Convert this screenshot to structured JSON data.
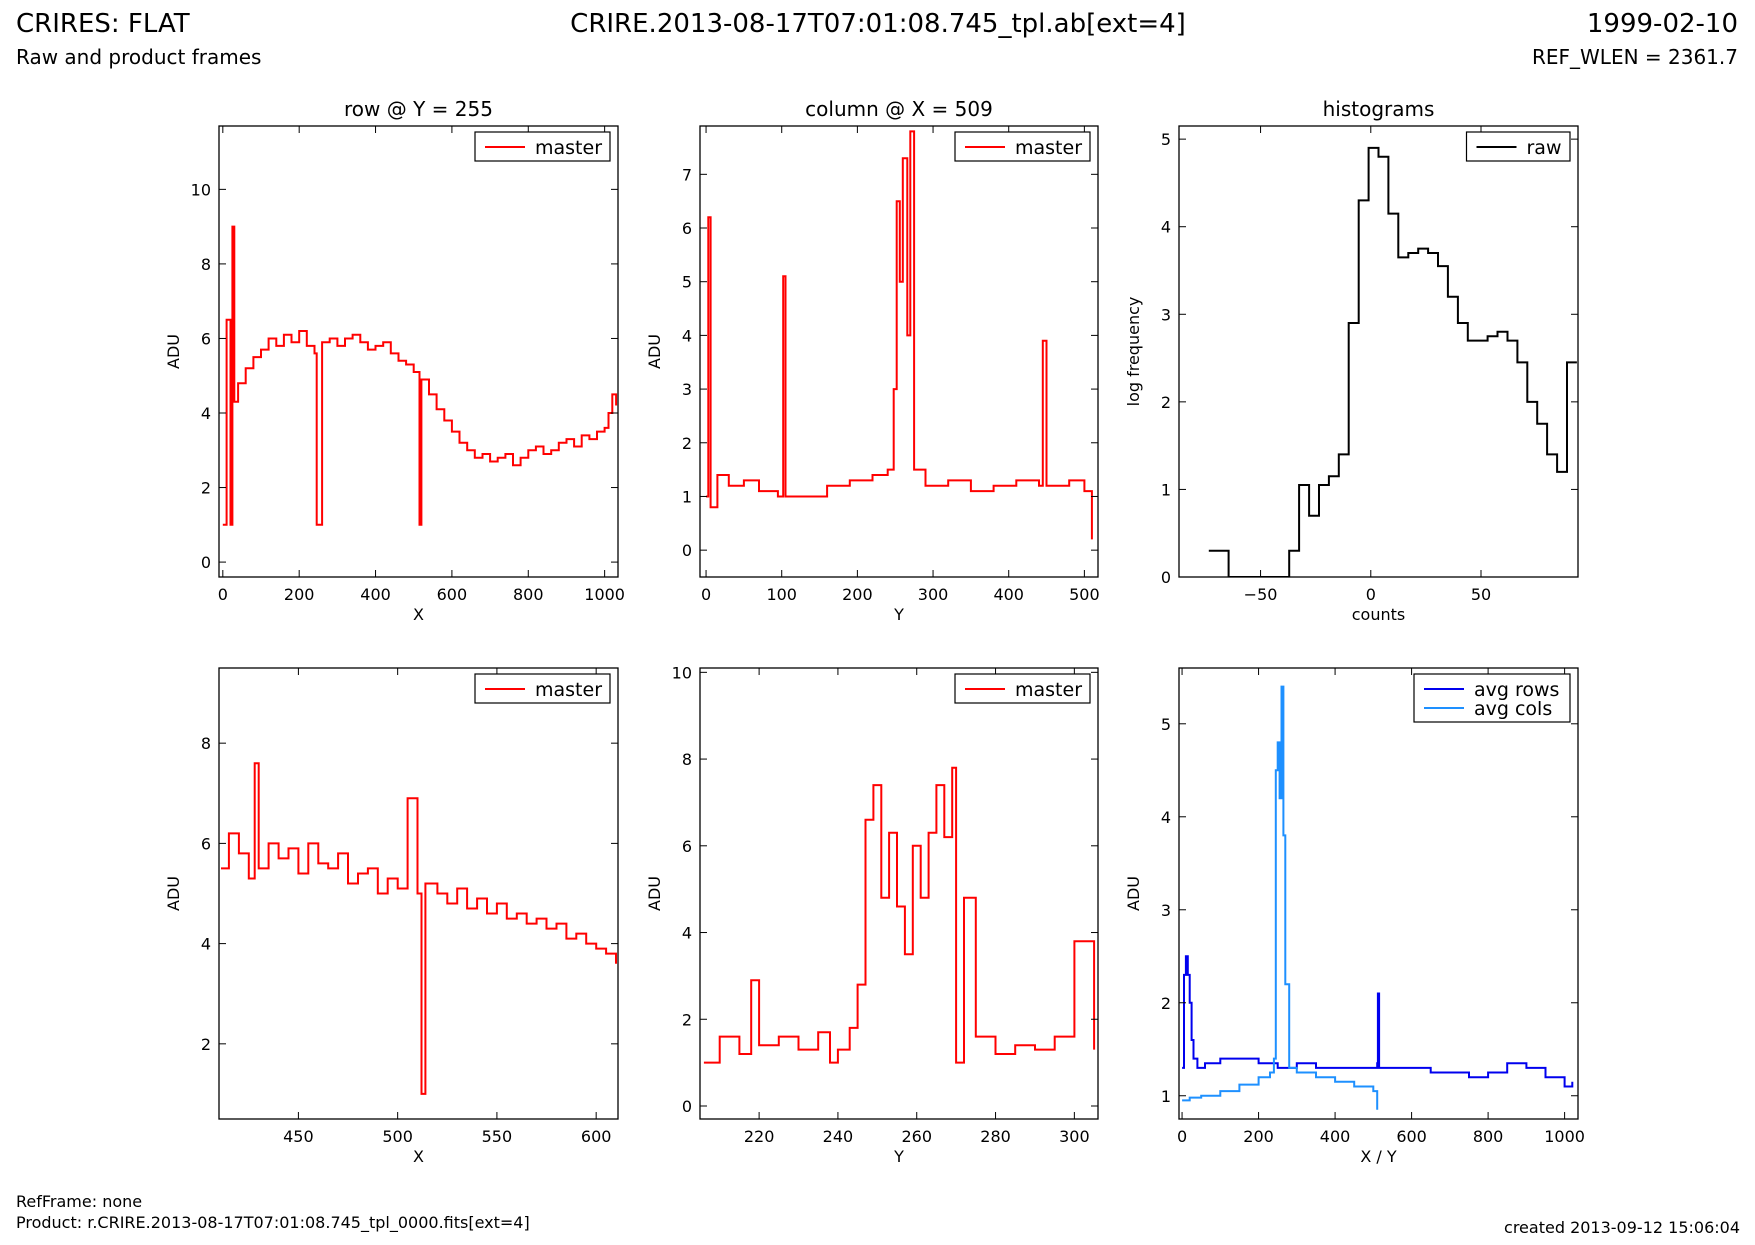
{
  "header": {
    "title": "CRIRES: FLAT",
    "subtitle": "Raw and product frames",
    "filename": "CRIRE.2013-08-17T07:01:08.745_tpl.ab[ext=4]",
    "date": "1999-02-10",
    "ref_wlen": "REF_WLEN = 2361.7"
  },
  "footer": {
    "refframe": "RefFrame: none",
    "product": "Product: r.CRIRE.2013-08-17T07:01:08.745_tpl_0000.fits[ext=4]",
    "created": "created 2013-09-12 15:06:04"
  },
  "colors": {
    "master": "#ff0000",
    "raw": "#000000",
    "avg_rows": "#0000ee",
    "avg_cols": "#1e90ff"
  },
  "chart_data": [
    {
      "type": "line",
      "title": "row @ Y = 255",
      "xlabel": "X",
      "ylabel": "ADU",
      "xlim": [
        -10,
        1035
      ],
      "ylim": [
        -0.4,
        11.7
      ],
      "xticks": [
        0,
        200,
        400,
        600,
        800,
        1000
      ],
      "yticks": [
        0,
        2,
        4,
        6,
        8,
        10
      ],
      "legend": "top-right",
      "series": [
        {
          "name": "master",
          "color": "#ff0000",
          "x": [
            0,
            10,
            20,
            25,
            30,
            40,
            60,
            80,
            100,
            120,
            140,
            160,
            180,
            200,
            220,
            240,
            246,
            260,
            280,
            300,
            320,
            340,
            360,
            380,
            400,
            420,
            440,
            460,
            480,
            500,
            515,
            520,
            540,
            560,
            580,
            600,
            620,
            640,
            660,
            680,
            700,
            720,
            740,
            760,
            780,
            800,
            820,
            840,
            860,
            880,
            900,
            920,
            940,
            960,
            980,
            1000,
            1010,
            1020,
            1030
          ],
          "y": [
            1.0,
            6.5,
            1.0,
            9.0,
            4.3,
            4.8,
            5.2,
            5.5,
            5.7,
            6.0,
            5.8,
            6.1,
            5.9,
            6.2,
            5.8,
            5.6,
            1.0,
            5.9,
            6.0,
            5.8,
            6.0,
            6.1,
            5.9,
            5.7,
            5.8,
            5.9,
            5.6,
            5.4,
            5.3,
            5.1,
            1.0,
            4.9,
            4.5,
            4.1,
            3.8,
            3.5,
            3.2,
            3.0,
            2.8,
            2.9,
            2.7,
            2.8,
            2.9,
            2.6,
            2.8,
            3.0,
            3.1,
            2.9,
            3.0,
            3.2,
            3.3,
            3.1,
            3.4,
            3.3,
            3.5,
            3.6,
            4.0,
            4.5,
            4.2
          ]
        }
      ]
    },
    {
      "type": "line",
      "title": "column @ X = 509",
      "xlabel": "Y",
      "ylabel": "ADU",
      "xlim": [
        -8,
        518
      ],
      "ylim": [
        -0.5,
        7.9
      ],
      "xticks": [
        0,
        100,
        200,
        300,
        400,
        500
      ],
      "yticks": [
        0,
        1,
        2,
        3,
        4,
        5,
        6,
        7
      ],
      "legend": "top-right",
      "series": [
        {
          "name": "master",
          "color": "#ff0000",
          "x": [
            0,
            3,
            6,
            15,
            30,
            50,
            70,
            95,
            102,
            105,
            130,
            160,
            190,
            220,
            240,
            248,
            252,
            256,
            260,
            266,
            270,
            275,
            290,
            320,
            350,
            380,
            410,
            440,
            445,
            450,
            480,
            500,
            510
          ],
          "y": [
            1.0,
            6.2,
            0.8,
            1.4,
            1.2,
            1.3,
            1.1,
            1.0,
            5.1,
            1.0,
            1.0,
            1.2,
            1.3,
            1.4,
            1.5,
            3.0,
            6.5,
            5.0,
            7.3,
            4.0,
            7.8,
            1.5,
            1.2,
            1.3,
            1.1,
            1.2,
            1.3,
            1.2,
            3.9,
            1.2,
            1.3,
            1.1,
            0.2
          ]
        }
      ]
    },
    {
      "type": "line",
      "title": "histograms",
      "xlabel": "counts",
      "ylabel": "log frequency",
      "xlim": [
        -87,
        94
      ],
      "ylim": [
        0,
        5.15
      ],
      "xticks": [
        -50,
        0,
        50
      ],
      "yticks": [
        0,
        1,
        2,
        3,
        4,
        5
      ],
      "legend": "top-right",
      "series": [
        {
          "name": "raw",
          "color": "#000000",
          "x": [
            -73.5,
            -64.5,
            -41,
            -37,
            -32.5,
            -28,
            -23.5,
            -19,
            -14.5,
            -10,
            -5.5,
            -1,
            3.5,
            8,
            12.5,
            17,
            21.5,
            26,
            30.5,
            35,
            39.5,
            44,
            48.5,
            53,
            57.5,
            62,
            66.5,
            71,
            75.5,
            80,
            84.5,
            89,
            93.5
          ],
          "y": [
            0.3,
            0,
            0,
            0.3,
            1.05,
            0.7,
            1.05,
            1.15,
            1.4,
            2.9,
            4.3,
            4.9,
            4.8,
            4.15,
            3.65,
            3.7,
            3.75,
            3.7,
            3.55,
            3.2,
            2.9,
            2.7,
            2.7,
            2.75,
            2.8,
            2.7,
            2.45,
            2.0,
            1.75,
            1.4,
            1.2,
            2.45,
            2.45
          ]
        }
      ]
    },
    {
      "type": "line",
      "title": "",
      "xlabel": "X",
      "ylabel": "ADU",
      "xlim": [
        410,
        611
      ],
      "ylim": [
        0.5,
        9.5
      ],
      "xticks": [
        450,
        500,
        550,
        600
      ],
      "yticks": [
        2,
        4,
        6,
        8
      ],
      "legend": "top-right",
      "series": [
        {
          "name": "master",
          "color": "#ff0000",
          "x": [
            411,
            415,
            420,
            425,
            428,
            430,
            435,
            440,
            445,
            450,
            455,
            460,
            465,
            470,
            475,
            480,
            485,
            490,
            495,
            500,
            505,
            510,
            512,
            514,
            520,
            525,
            530,
            535,
            540,
            545,
            550,
            555,
            560,
            565,
            570,
            575,
            580,
            585,
            590,
            595,
            600,
            605,
            610
          ],
          "y": [
            5.5,
            6.2,
            5.8,
            5.3,
            7.6,
            5.5,
            6.0,
            5.7,
            5.9,
            5.4,
            6.0,
            5.6,
            5.5,
            5.8,
            5.2,
            5.4,
            5.5,
            5.0,
            5.3,
            5.1,
            6.9,
            5.0,
            1.0,
            5.2,
            5.0,
            4.8,
            5.1,
            4.7,
            4.9,
            4.6,
            4.8,
            4.5,
            4.6,
            4.4,
            4.5,
            4.3,
            4.4,
            4.1,
            4.2,
            4.0,
            3.9,
            3.8,
            3.6
          ]
        }
      ]
    },
    {
      "type": "line",
      "title": "",
      "xlabel": "Y",
      "ylabel": "ADU",
      "xlim": [
        205,
        306
      ],
      "ylim": [
        -0.3,
        10.1
      ],
      "xticks": [
        220,
        240,
        260,
        280,
        300
      ],
      "yticks": [
        0,
        2,
        4,
        6,
        8,
        10
      ],
      "legend": "top-right",
      "series": [
        {
          "name": "master",
          "color": "#ff0000",
          "x": [
            206,
            210,
            215,
            218,
            220,
            225,
            230,
            235,
            238,
            240,
            243,
            245,
            247,
            249,
            251,
            253,
            255,
            257,
            259,
            261,
            263,
            265,
            267,
            269,
            270,
            272,
            275,
            280,
            285,
            290,
            295,
            300,
            305
          ],
          "y": [
            1.0,
            1.6,
            1.2,
            2.9,
            1.4,
            1.6,
            1.3,
            1.7,
            1.0,
            1.3,
            1.8,
            2.8,
            6.6,
            7.4,
            4.8,
            6.3,
            4.6,
            3.5,
            6.0,
            4.8,
            6.3,
            7.4,
            6.2,
            7.8,
            1.0,
            4.8,
            1.6,
            1.2,
            1.4,
            1.3,
            1.6,
            3.8,
            1.3
          ]
        }
      ]
    },
    {
      "type": "line",
      "title": "",
      "xlabel": "X / Y",
      "ylabel": "ADU",
      "xlim": [
        -8,
        1035
      ],
      "ylim": [
        0.75,
        5.6
      ],
      "xticks": [
        0,
        200,
        400,
        600,
        800,
        1000
      ],
      "yticks": [
        1,
        2,
        3,
        4,
        5
      ],
      "legend": "top-right",
      "series": [
        {
          "name": "avg rows",
          "color": "#0000ee",
          "x": [
            0,
            5,
            10,
            15,
            20,
            25,
            30,
            40,
            60,
            100,
            150,
            200,
            250,
            300,
            350,
            400,
            450,
            500,
            510,
            512,
            515,
            550,
            600,
            650,
            700,
            750,
            800,
            850,
            900,
            950,
            1000,
            1020
          ],
          "y": [
            1.3,
            2.3,
            2.5,
            2.3,
            2.0,
            1.6,
            1.4,
            1.3,
            1.35,
            1.4,
            1.4,
            1.35,
            1.3,
            1.35,
            1.3,
            1.3,
            1.3,
            1.3,
            1.35,
            2.1,
            1.3,
            1.3,
            1.3,
            1.25,
            1.25,
            1.2,
            1.25,
            1.35,
            1.3,
            1.2,
            1.1,
            1.15
          ]
        },
        {
          "name": "avg cols",
          "color": "#1e90ff",
          "x": [
            0,
            20,
            50,
            100,
            150,
            200,
            230,
            240,
            245,
            250,
            255,
            260,
            265,
            270,
            280,
            300,
            350,
            400,
            450,
            500,
            510
          ],
          "y": [
            0.95,
            0.98,
            1.0,
            1.05,
            1.12,
            1.2,
            1.25,
            1.4,
            4.5,
            4.8,
            4.2,
            5.4,
            3.8,
            2.2,
            1.3,
            1.25,
            1.2,
            1.15,
            1.1,
            1.05,
            0.85
          ]
        }
      ]
    }
  ]
}
